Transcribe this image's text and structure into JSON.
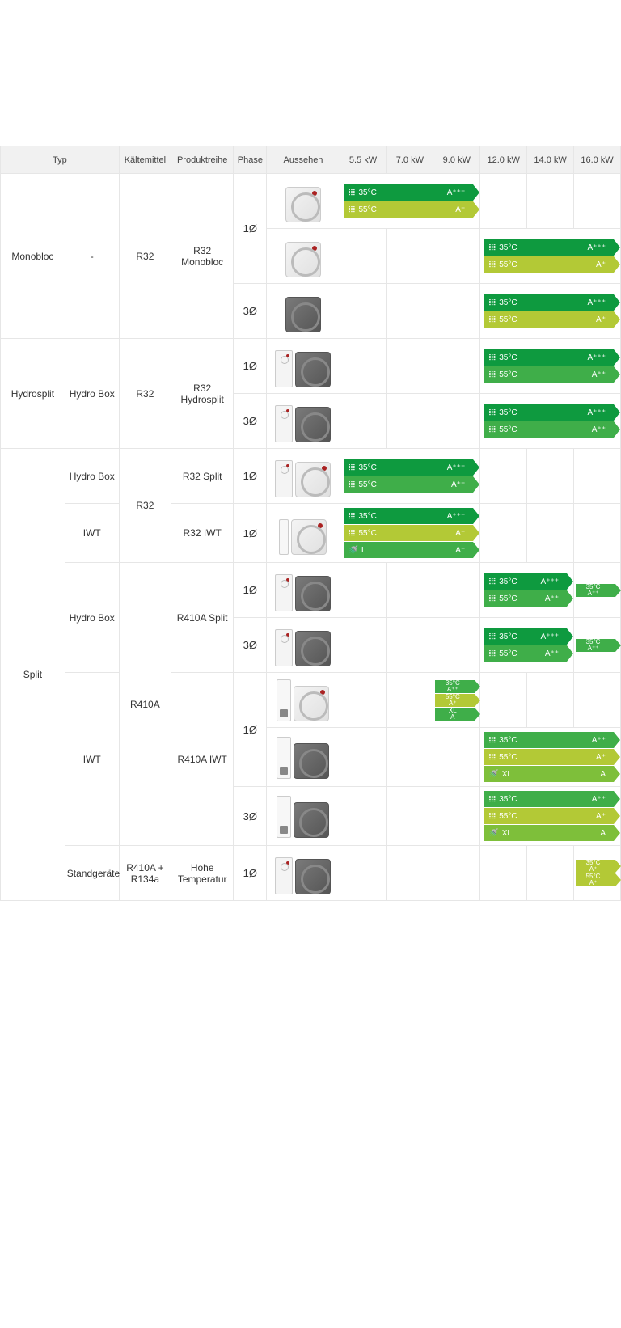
{
  "colors": {
    "darkgreen": "#0e9a3f",
    "green": "#3fae49",
    "lightgreen": "#7ebf3a",
    "yellowgreen": "#b3c936",
    "lime": "#c9d530"
  },
  "headers": {
    "typ": "Typ",
    "kaeltemittel": "Kältemittel",
    "produktreihe": "Produktreihe",
    "phase": "Phase",
    "aussehen": "Aussehen",
    "kw": [
      "5.5 kW",
      "7.0 kW",
      "9.0 kW",
      "12.0 kW",
      "14.0 kW",
      "16.0 kW"
    ]
  },
  "labels": {
    "monobloc": "Monobloc",
    "hydrosplit": "Hydrosplit",
    "split": "Split",
    "hydroBox": "Hydro Box",
    "iwt": "IWT",
    "stand": "Standgeräte",
    "dash": "-",
    "r32": "R32",
    "r410a": "R410A",
    "r410r134": "R410A + R134a",
    "r32mono": "R32 Monobloc",
    "r32hydro": "R32 Hydrosplit",
    "r32split": "R32 Split",
    "r32iwt": "R32 IWT",
    "r410split": "R410A Split",
    "r410iwt": "R410A IWT",
    "hoheTemp": "Hohe Temperatur",
    "p1": "1Ø",
    "p3": "3Ø",
    "t35": "35°C",
    "t55": "55°C",
    "L": "L",
    "XL": "XL",
    "Appp": "A⁺⁺⁺",
    "App": "A⁺⁺",
    "Ap": "A⁺",
    "A": "A"
  }
}
